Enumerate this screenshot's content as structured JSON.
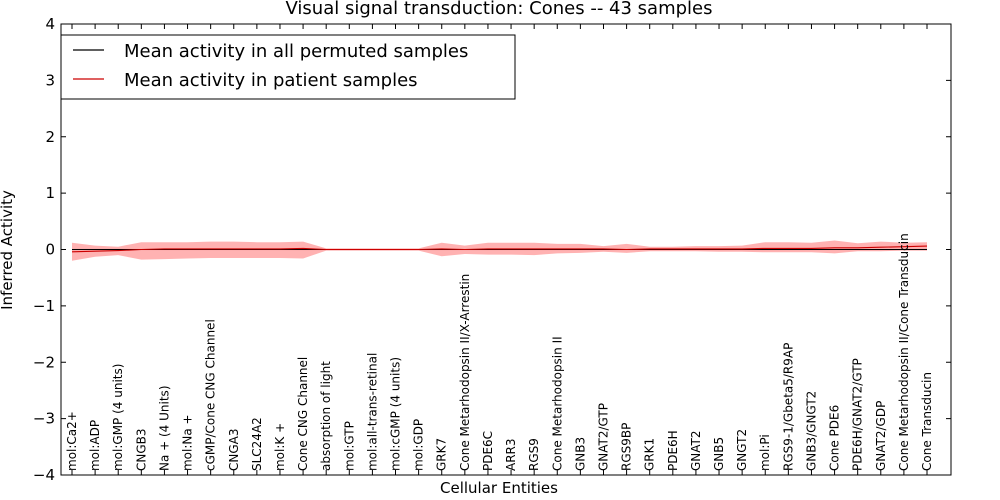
{
  "chart_data": {
    "type": "line",
    "title": "Visual signal transduction: Cones -- 43 samples",
    "xlabel": "Cellular Entities",
    "ylabel": "Inferred Activity",
    "ylim": [
      -4,
      4
    ],
    "yticks": [
      "4",
      "3",
      "2",
      "1",
      "0",
      "−1",
      "−2",
      "−3",
      "−4"
    ],
    "ytick_values": [
      4,
      3,
      2,
      1,
      0,
      -1,
      -2,
      -3,
      -4
    ],
    "legend_position": "top-left",
    "categories": [
      "mol:Ca2+",
      "mol:ADP",
      "mol:GMP (4 units)",
      "CNGB3",
      "Na + (4 Units)",
      "mol:Na +",
      "cGMP/Cone CNG Channel",
      "CNGA3",
      "SLC24A2",
      "mol:K +",
      "Cone CNG Channel",
      "absorption of light",
      "mol:GTP",
      "mol:all-trans-retinal",
      "mol:cGMP (4 units)",
      "mol:GDP",
      "GRK7",
      "Cone Metarhodopsin II/X-Arrestin",
      "PDE6C",
      "ARR3",
      "RGS9",
      "Cone Metarhodopsin II",
      "GNB3",
      "GNAT2/GTP",
      "RGS9BP",
      "GRK1",
      "PDE6H",
      "GNAT2",
      "GNB5",
      "GNGT2",
      "mol:Pi",
      "RGS9-1/Gbeta5/R9AP",
      "GNB3/GNGT2",
      "Cone PDE6",
      "PDE6H/GNAT2/GTP",
      "GNAT2/GDP",
      "Cone Metarhodopsin II/Cone Transducin",
      "Cone Transducin"
    ],
    "series": [
      {
        "name": "Mean activity in all permuted samples",
        "color": "#000000",
        "values": [
          0,
          0,
          0,
          0,
          0,
          0,
          0,
          0,
          0,
          0,
          0,
          0,
          0,
          0,
          0,
          0,
          0,
          0,
          0,
          0,
          0,
          0,
          0,
          0,
          0,
          0,
          0,
          0,
          0,
          0,
          0,
          0,
          0,
          0,
          0,
          0,
          0,
          0
        ],
        "band_upper": [
          0.01,
          0.01,
          0.01,
          0.01,
          0.01,
          0.01,
          0.01,
          0.01,
          0.01,
          0.01,
          0.01,
          0.01,
          0.01,
          0.01,
          0.01,
          0.01,
          0.01,
          0.01,
          0.01,
          0.01,
          0.01,
          0.01,
          0.01,
          0.01,
          0.01,
          0.01,
          0.01,
          0.01,
          0.01,
          0.01,
          0.01,
          0.01,
          0.01,
          0.01,
          0.01,
          0.01,
          0.01,
          0.01
        ],
        "band_lower": [
          -0.01,
          -0.01,
          -0.01,
          -0.01,
          -0.01,
          -0.01,
          -0.01,
          -0.01,
          -0.01,
          -0.01,
          -0.01,
          -0.01,
          -0.01,
          -0.01,
          -0.01,
          -0.01,
          -0.01,
          -0.01,
          -0.01,
          -0.01,
          -0.01,
          -0.01,
          -0.01,
          -0.01,
          -0.01,
          -0.01,
          -0.01,
          -0.01,
          -0.01,
          -0.01,
          -0.01,
          -0.01,
          -0.01,
          -0.01,
          -0.01,
          -0.01,
          -0.01,
          -0.01
        ]
      },
      {
        "name": "Mean activity in patient samples",
        "color": "#cc0000",
        "values": [
          -0.04,
          -0.03,
          -0.02,
          0.0,
          0.01,
          0.01,
          0.01,
          0.01,
          0.01,
          0.01,
          0.02,
          0.0,
          0.0,
          0.0,
          0.0,
          0.0,
          0.01,
          0.0,
          0.01,
          0.01,
          0.01,
          0.01,
          0.01,
          0.01,
          0.0,
          0.01,
          0.01,
          0.01,
          0.01,
          0.01,
          0.02,
          0.02,
          0.02,
          0.03,
          0.03,
          0.04,
          0.05,
          0.06
        ],
        "band_upper": [
          0.12,
          0.07,
          0.05,
          0.13,
          0.13,
          0.13,
          0.14,
          0.14,
          0.13,
          0.13,
          0.14,
          0.02,
          0.02,
          0.02,
          0.02,
          0.02,
          0.12,
          0.07,
          0.12,
          0.12,
          0.12,
          0.1,
          0.1,
          0.06,
          0.1,
          0.05,
          0.05,
          0.06,
          0.06,
          0.07,
          0.13,
          0.13,
          0.12,
          0.16,
          0.11,
          0.14,
          0.12,
          0.13
        ],
        "band_lower": [
          -0.2,
          -0.13,
          -0.1,
          -0.18,
          -0.17,
          -0.16,
          -0.15,
          -0.15,
          -0.15,
          -0.15,
          -0.16,
          -0.02,
          -0.02,
          -0.02,
          -0.02,
          -0.02,
          -0.12,
          -0.08,
          -0.09,
          -0.09,
          -0.1,
          -0.07,
          -0.06,
          -0.04,
          -0.06,
          -0.03,
          -0.03,
          -0.03,
          -0.04,
          -0.04,
          -0.05,
          -0.05,
          -0.05,
          -0.07,
          -0.03,
          -0.03,
          -0.02,
          -0.02
        ]
      }
    ],
    "reference_line": {
      "style": "dotted",
      "color": "#000000",
      "value": 0
    }
  }
}
